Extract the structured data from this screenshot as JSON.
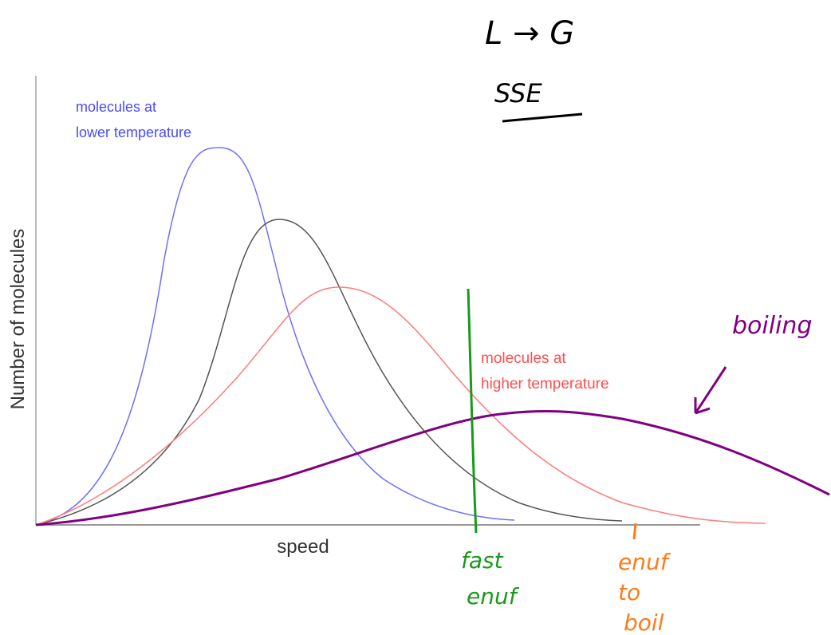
{
  "notes": {
    "phase": "L → G",
    "mnemonic": "SSE"
  },
  "axes": {
    "y_label": "Number of molecules",
    "x_label": "speed"
  },
  "curves": {
    "low": [
      "molecules at",
      "lower temperature"
    ],
    "high": [
      "molecules at",
      "higher temperature"
    ],
    "boiling": "boiling"
  },
  "markers": {
    "fast": [
      "fast",
      "enuf"
    ],
    "boil": [
      "enuf",
      "to",
      "boil"
    ]
  }
}
